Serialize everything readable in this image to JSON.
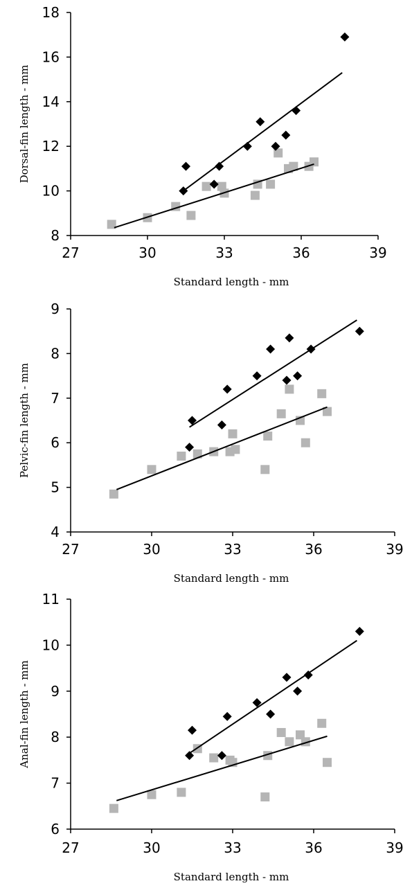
{
  "chart_data": [
    {
      "type": "scatter",
      "xlabel": "Standard length - mm",
      "ylabel": "Dorsal-fin length - mm",
      "xlim": [
        27,
        39
      ],
      "ylim": [
        8,
        18
      ],
      "xticks": [
        "27",
        "30",
        "33",
        "36",
        "39"
      ],
      "yticks": [
        "8",
        "10",
        "12",
        "14",
        "16",
        "18"
      ],
      "series": [
        {
          "color": "#000000",
          "marker": "diamond",
          "points": [
            [
              31.4,
              10.0
            ],
            [
              31.5,
              11.1
            ],
            [
              32.6,
              10.3
            ],
            [
              32.8,
              11.1
            ],
            [
              33.9,
              12.0
            ],
            [
              34.4,
              13.1
            ],
            [
              35.0,
              12.0
            ],
            [
              35.4,
              12.5
            ],
            [
              35.8,
              13.6
            ],
            [
              37.7,
              16.9
            ]
          ],
          "trend": [
            [
              31.4,
              10.0
            ],
            [
              37.6,
              15.3
            ]
          ]
        },
        {
          "color": "#b5b5b5",
          "marker": "square",
          "points": [
            [
              28.6,
              8.5
            ],
            [
              30.0,
              8.8
            ],
            [
              31.1,
              9.3
            ],
            [
              31.7,
              8.9
            ],
            [
              32.3,
              10.2
            ],
            [
              32.9,
              10.2
            ],
            [
              33.0,
              9.9
            ],
            [
              34.2,
              9.8
            ],
            [
              34.3,
              10.3
            ],
            [
              34.8,
              10.3
            ],
            [
              35.1,
              11.7
            ],
            [
              35.5,
              11.0
            ],
            [
              35.7,
              11.1
            ],
            [
              36.3,
              11.1
            ],
            [
              36.5,
              11.3
            ]
          ],
          "trend": [
            [
              28.7,
              8.35
            ],
            [
              36.5,
              11.2
            ]
          ]
        }
      ]
    },
    {
      "type": "scatter",
      "xlabel": "Standard length - mm",
      "ylabel": "Pelvic-fin length - mm",
      "xlim": [
        27,
        39
      ],
      "ylim": [
        4,
        9
      ],
      "xticks": [
        "27",
        "30",
        "33",
        "36",
        "39"
      ],
      "yticks": [
        "4",
        "5",
        "6",
        "7",
        "8",
        "9"
      ],
      "series": [
        {
          "color": "#000000",
          "marker": "diamond",
          "points": [
            [
              31.4,
              5.9
            ],
            [
              31.5,
              6.5
            ],
            [
              32.6,
              6.4
            ],
            [
              32.8,
              7.2
            ],
            [
              33.9,
              7.5
            ],
            [
              34.4,
              8.1
            ],
            [
              35.0,
              7.4
            ],
            [
              35.1,
              8.35
            ],
            [
              35.4,
              7.5
            ],
            [
              35.9,
              8.1
            ],
            [
              37.7,
              8.5
            ]
          ],
          "trend": [
            [
              31.4,
              6.35
            ],
            [
              37.6,
              8.75
            ]
          ]
        },
        {
          "color": "#b5b5b5",
          "marker": "square",
          "points": [
            [
              28.6,
              4.85
            ],
            [
              30.0,
              5.4
            ],
            [
              31.1,
              5.7
            ],
            [
              31.7,
              5.75
            ],
            [
              32.3,
              5.8
            ],
            [
              32.9,
              5.8
            ],
            [
              33.0,
              6.2
            ],
            [
              33.1,
              5.85
            ],
            [
              34.2,
              5.4
            ],
            [
              34.3,
              6.15
            ],
            [
              34.8,
              6.65
            ],
            [
              35.1,
              7.2
            ],
            [
              35.5,
              6.5
            ],
            [
              35.7,
              6.0
            ],
            [
              36.3,
              7.1
            ],
            [
              36.5,
              6.7
            ]
          ],
          "trend": [
            [
              28.7,
              4.95
            ],
            [
              36.5,
              6.8
            ]
          ]
        }
      ]
    },
    {
      "type": "scatter",
      "xlabel": "Standard length - mm",
      "ylabel": "Anal-fin length - mm",
      "xlim": [
        27,
        39
      ],
      "ylim": [
        6,
        11
      ],
      "xticks": [
        "27",
        "30",
        "33",
        "36",
        "39"
      ],
      "yticks": [
        "6",
        "7",
        "8",
        "9",
        "10",
        "11"
      ],
      "series": [
        {
          "color": "#000000",
          "marker": "diamond",
          "points": [
            [
              31.4,
              7.6
            ],
            [
              31.5,
              8.15
            ],
            [
              32.6,
              7.6
            ],
            [
              32.8,
              8.45
            ],
            [
              33.9,
              8.75
            ],
            [
              34.4,
              8.5
            ],
            [
              35.0,
              9.3
            ],
            [
              35.4,
              9.0
            ],
            [
              35.8,
              9.35
            ],
            [
              37.7,
              10.3
            ]
          ],
          "trend": [
            [
              31.4,
              7.65
            ],
            [
              37.6,
              10.1
            ]
          ]
        },
        {
          "color": "#b5b5b5",
          "marker": "square",
          "points": [
            [
              28.6,
              6.45
            ],
            [
              30.0,
              6.75
            ],
            [
              31.1,
              6.8
            ],
            [
              31.7,
              7.75
            ],
            [
              32.3,
              7.55
            ],
            [
              32.9,
              7.5
            ],
            [
              33.0,
              7.45
            ],
            [
              34.2,
              6.7
            ],
            [
              34.3,
              7.6
            ],
            [
              34.8,
              8.1
            ],
            [
              35.1,
              7.9
            ],
            [
              35.5,
              8.05
            ],
            [
              35.7,
              7.9
            ],
            [
              36.3,
              8.3
            ],
            [
              36.5,
              7.45
            ]
          ],
          "trend": [
            [
              28.7,
              6.62
            ],
            [
              36.5,
              8.02
            ]
          ]
        }
      ]
    }
  ]
}
